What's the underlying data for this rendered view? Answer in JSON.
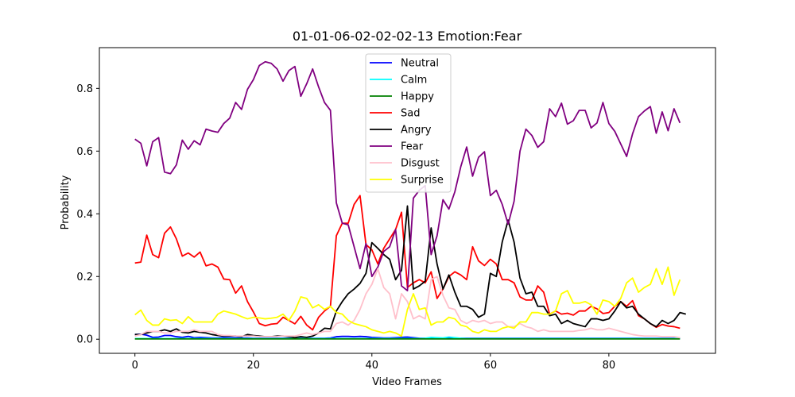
{
  "chart_data": {
    "type": "line",
    "title": "01-01-06-02-02-02-13 Emotion:Fear",
    "xlabel": "Video Frames",
    "ylabel": "Probability",
    "xlim": [
      -6,
      98
    ],
    "ylim": [
      -0.045,
      0.93
    ],
    "xticks": [
      0,
      20,
      40,
      60,
      80
    ],
    "yticks": [
      0.0,
      0.2,
      0.4,
      0.6,
      0.8
    ],
    "ytick_labels": [
      "0.0",
      "0.2",
      "0.4",
      "0.6",
      "0.8"
    ],
    "legend_position": "top-center",
    "grid": false,
    "series": [
      {
        "name": "Neutral",
        "color": "#0000ff",
        "values": [
          0.015,
          0.016,
          0.013,
          0.006,
          0.007,
          0.012,
          0.012,
          0.008,
          0.006,
          0.009,
          0.005,
          0.006,
          0.005,
          0.004,
          0.004,
          0.006,
          0.005,
          0.005,
          0.004,
          0.004,
          0.003,
          0.003,
          0.003,
          0.003,
          0.003,
          0.003,
          0.003,
          0.003,
          0.003,
          0.003,
          0.003,
          0.003,
          0.003,
          0.004,
          0.008,
          0.009,
          0.009,
          0.008,
          0.009,
          0.008,
          0.006,
          0.005,
          0.004,
          0.004,
          0.005,
          0.006,
          0.007,
          0.005,
          0.003,
          0.003,
          0.003,
          0.003,
          0.003,
          0.003,
          0.003,
          0.003,
          0.003,
          0.003,
          0.003,
          0.003,
          0.003,
          0.003,
          0.003,
          0.003,
          0.003,
          0.003,
          0.003,
          0.003,
          0.003,
          0.003,
          0.003,
          0.003,
          0.003,
          0.003,
          0.003,
          0.003,
          0.003,
          0.003,
          0.003,
          0.003,
          0.003,
          0.003,
          0.003,
          0.003,
          0.003,
          0.003,
          0.003,
          0.003,
          0.003,
          0.003,
          0.003,
          0.003,
          0.003
        ]
      },
      {
        "name": "Calm",
        "color": "#00ffff",
        "values": [
          0.002,
          0.002,
          0.002,
          0.002,
          0.002,
          0.002,
          0.002,
          0.002,
          0.002,
          0.002,
          0.002,
          0.002,
          0.002,
          0.002,
          0.002,
          0.002,
          0.002,
          0.002,
          0.002,
          0.002,
          0.002,
          0.002,
          0.002,
          0.002,
          0.002,
          0.002,
          0.002,
          0.002,
          0.002,
          0.002,
          0.002,
          0.002,
          0.002,
          0.002,
          0.002,
          0.002,
          0.002,
          0.002,
          0.002,
          0.002,
          0.002,
          0.002,
          0.002,
          0.002,
          0.002,
          0.002,
          0.002,
          0.002,
          0.002,
          0.003,
          0.006,
          0.005,
          0.004,
          0.007,
          0.005,
          0.003,
          0.002,
          0.002,
          0.002,
          0.002,
          0.002,
          0.002,
          0.002,
          0.002,
          0.002,
          0.002,
          0.002,
          0.002,
          0.002,
          0.002,
          0.002,
          0.002,
          0.002,
          0.002,
          0.002,
          0.002,
          0.002,
          0.002,
          0.002,
          0.002,
          0.002,
          0.002,
          0.002,
          0.002,
          0.002,
          0.002,
          0.002,
          0.002,
          0.002,
          0.002,
          0.002,
          0.002,
          0.002
        ]
      },
      {
        "name": "Happy",
        "color": "#008000",
        "values": [
          0.001,
          0.001,
          0.001,
          0.001,
          0.001,
          0.001,
          0.001,
          0.001,
          0.001,
          0.001,
          0.001,
          0.001,
          0.001,
          0.001,
          0.001,
          0.001,
          0.001,
          0.001,
          0.001,
          0.001,
          0.001,
          0.001,
          0.001,
          0.001,
          0.001,
          0.001,
          0.001,
          0.001,
          0.001,
          0.001,
          0.001,
          0.001,
          0.001,
          0.001,
          0.001,
          0.001,
          0.001,
          0.001,
          0.001,
          0.001,
          0.001,
          0.001,
          0.001,
          0.001,
          0.001,
          0.001,
          0.001,
          0.001,
          0.001,
          0.001,
          0.001,
          0.001,
          0.001,
          0.001,
          0.001,
          0.001,
          0.001,
          0.001,
          0.001,
          0.001,
          0.001,
          0.001,
          0.001,
          0.001,
          0.001,
          0.001,
          0.001,
          0.001,
          0.001,
          0.001,
          0.001,
          0.001,
          0.001,
          0.001,
          0.001,
          0.001,
          0.001,
          0.001,
          0.001,
          0.001,
          0.001,
          0.001,
          0.001,
          0.001,
          0.001,
          0.001,
          0.001,
          0.001,
          0.001,
          0.001,
          0.001,
          0.001,
          0.001
        ]
      },
      {
        "name": "Sad",
        "color": "#ff0000",
        "values": [
          0.243,
          0.246,
          0.332,
          0.27,
          0.26,
          0.338,
          0.358,
          0.32,
          0.265,
          0.275,
          0.262,
          0.278,
          0.234,
          0.24,
          0.23,
          0.192,
          0.19,
          0.147,
          0.17,
          0.12,
          0.087,
          0.05,
          0.043,
          0.048,
          0.05,
          0.07,
          0.06,
          0.049,
          0.073,
          0.045,
          0.03,
          0.07,
          0.09,
          0.105,
          0.33,
          0.37,
          0.37,
          0.43,
          0.458,
          0.302,
          0.285,
          0.24,
          0.29,
          0.32,
          0.35,
          0.405,
          0.165,
          0.18,
          0.19,
          0.18,
          0.215,
          0.13,
          0.16,
          0.2,
          0.215,
          0.205,
          0.19,
          0.295,
          0.25,
          0.235,
          0.255,
          0.24,
          0.19,
          0.19,
          0.18,
          0.135,
          0.125,
          0.125,
          0.17,
          0.15,
          0.08,
          0.09,
          0.08,
          0.083,
          0.077,
          0.09,
          0.09,
          0.105,
          0.097,
          0.082,
          0.085,
          0.105,
          0.12,
          0.105,
          0.123,
          0.075,
          0.065,
          0.05,
          0.038,
          0.047,
          0.042,
          0.04,
          0.035
        ]
      },
      {
        "name": "Angry",
        "color": "#000000",
        "values": [
          0.015,
          0.015,
          0.02,
          0.025,
          0.025,
          0.03,
          0.025,
          0.033,
          0.022,
          0.02,
          0.025,
          0.022,
          0.02,
          0.015,
          0.012,
          0.01,
          0.01,
          0.01,
          0.008,
          0.015,
          0.012,
          0.01,
          0.008,
          0.008,
          0.01,
          0.01,
          0.008,
          0.005,
          0.008,
          0.006,
          0.01,
          0.02,
          0.035,
          0.033,
          0.09,
          0.12,
          0.145,
          0.16,
          0.178,
          0.21,
          0.308,
          0.29,
          0.27,
          0.255,
          0.19,
          0.22,
          0.425,
          0.16,
          0.17,
          0.185,
          0.355,
          0.24,
          0.16,
          0.205,
          0.15,
          0.105,
          0.105,
          0.095,
          0.07,
          0.08,
          0.21,
          0.2,
          0.31,
          0.38,
          0.31,
          0.195,
          0.145,
          0.15,
          0.105,
          0.105,
          0.075,
          0.08,
          0.05,
          0.06,
          0.05,
          0.045,
          0.04,
          0.065,
          0.065,
          0.06,
          0.065,
          0.09,
          0.12,
          0.1,
          0.105,
          0.08,
          0.065,
          0.05,
          0.04,
          0.06,
          0.05,
          0.06,
          0.085,
          0.08
        ]
      },
      {
        "name": "Fear",
        "color": "#800080",
        "values": [
          0.638,
          0.625,
          0.553,
          0.63,
          0.643,
          0.533,
          0.528,
          0.556,
          0.635,
          0.606,
          0.633,
          0.62,
          0.67,
          0.664,
          0.66,
          0.688,
          0.705,
          0.755,
          0.733,
          0.797,
          0.828,
          0.873,
          0.885,
          0.88,
          0.862,
          0.823,
          0.857,
          0.87,
          0.775,
          0.815,
          0.862,
          0.805,
          0.755,
          0.73,
          0.435,
          0.37,
          0.365,
          0.295,
          0.225,
          0.305,
          0.2,
          0.23,
          0.28,
          0.295,
          0.35,
          0.17,
          0.155,
          0.45,
          0.475,
          0.49,
          0.27,
          0.33,
          0.445,
          0.415,
          0.47,
          0.55,
          0.613,
          0.52,
          0.58,
          0.598,
          0.458,
          0.475,
          0.43,
          0.367,
          0.44,
          0.6,
          0.67,
          0.65,
          0.612,
          0.63,
          0.735,
          0.71,
          0.753,
          0.686,
          0.697,
          0.73,
          0.73,
          0.674,
          0.69,
          0.755,
          0.688,
          0.663,
          0.623,
          0.583,
          0.655,
          0.71,
          0.728,
          0.742,
          0.657,
          0.725,
          0.665,
          0.735,
          0.69
        ]
      },
      {
        "name": "Disgust",
        "color": "#ffc0cb",
        "values": [
          0.01,
          0.015,
          0.025,
          0.025,
          0.025,
          0.02,
          0.02,
          0.025,
          0.025,
          0.025,
          0.03,
          0.025,
          0.025,
          0.025,
          0.015,
          0.012,
          0.012,
          0.01,
          0.01,
          0.01,
          0.01,
          0.008,
          0.008,
          0.008,
          0.008,
          0.01,
          0.01,
          0.01,
          0.015,
          0.02,
          0.015,
          0.02,
          0.025,
          0.025,
          0.05,
          0.055,
          0.045,
          0.06,
          0.095,
          0.145,
          0.175,
          0.225,
          0.165,
          0.145,
          0.065,
          0.145,
          0.12,
          0.065,
          0.075,
          0.065,
          0.19,
          0.2,
          0.14,
          0.1,
          0.095,
          0.06,
          0.05,
          0.06,
          0.055,
          0.06,
          0.05,
          0.055,
          0.055,
          0.04,
          0.04,
          0.05,
          0.04,
          0.035,
          0.025,
          0.03,
          0.025,
          0.025,
          0.025,
          0.025,
          0.025,
          0.028,
          0.03,
          0.035,
          0.03,
          0.03,
          0.035,
          0.03,
          0.025,
          0.02,
          0.015,
          0.012,
          0.01,
          0.01,
          0.01,
          0.008,
          0.008,
          0.008,
          0.005
        ]
      },
      {
        "name": "Surprise",
        "color": "#ffff00",
        "values": [
          0.078,
          0.093,
          0.06,
          0.045,
          0.045,
          0.065,
          0.06,
          0.062,
          0.05,
          0.072,
          0.055,
          0.055,
          0.055,
          0.055,
          0.08,
          0.09,
          0.085,
          0.08,
          0.072,
          0.065,
          0.07,
          0.068,
          0.065,
          0.067,
          0.07,
          0.08,
          0.06,
          0.09,
          0.135,
          0.13,
          0.1,
          0.11,
          0.095,
          0.105,
          0.085,
          0.08,
          0.06,
          0.05,
          0.045,
          0.04,
          0.03,
          0.025,
          0.02,
          0.025,
          0.02,
          0.01,
          0.095,
          0.145,
          0.095,
          0.1,
          0.045,
          0.055,
          0.055,
          0.07,
          0.065,
          0.045,
          0.04,
          0.025,
          0.02,
          0.03,
          0.025,
          0.025,
          0.035,
          0.04,
          0.035,
          0.055,
          0.055,
          0.085,
          0.085,
          0.08,
          0.08,
          0.09,
          0.145,
          0.155,
          0.115,
          0.115,
          0.12,
          0.11,
          0.08,
          0.125,
          0.12,
          0.105,
          0.13,
          0.18,
          0.195,
          0.15,
          0.165,
          0.175,
          0.225,
          0.175,
          0.23,
          0.14,
          0.19
        ]
      }
    ]
  }
}
